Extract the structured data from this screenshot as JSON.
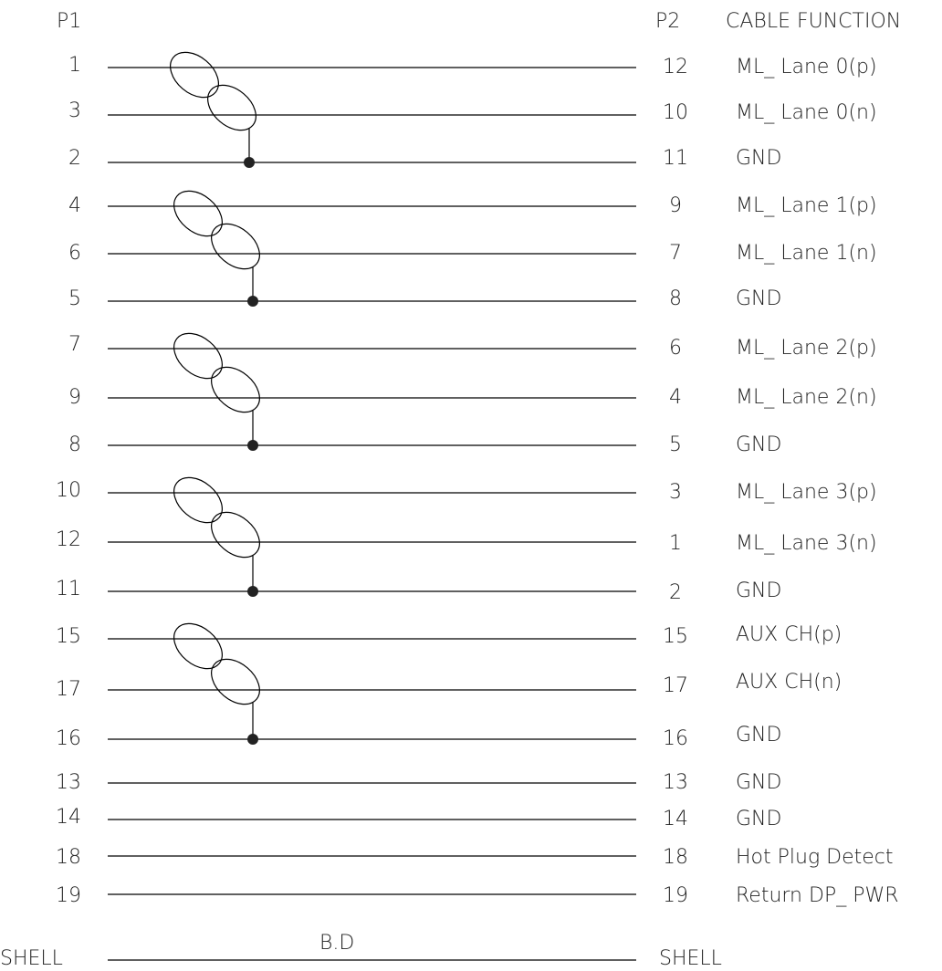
{
  "headers": {
    "p1": "P1",
    "p2": "P2",
    "function": "CABLE FUNCTION"
  },
  "rows": [
    {
      "p1": "1",
      "p2": "12",
      "fn": "ML_ Lane 0(p)"
    },
    {
      "p1": "3",
      "p2": "10",
      "fn": "ML_ Lane 0(n)"
    },
    {
      "p1": "2",
      "p2": "11",
      "fn": "GND"
    },
    {
      "p1": "4",
      "p2": "9",
      "fn": "ML_ Lane 1(p)"
    },
    {
      "p1": "6",
      "p2": "7",
      "fn": "ML_ Lane 1(n)"
    },
    {
      "p1": "5",
      "p2": "8",
      "fn": "GND"
    },
    {
      "p1": "7",
      "p2": "6",
      "fn": "ML_ Lane 2(p)"
    },
    {
      "p1": "9",
      "p2": "4",
      "fn": "ML_ Lane 2(n)"
    },
    {
      "p1": "8",
      "p2": "5",
      "fn": "GND"
    },
    {
      "p1": "10",
      "p2": "3",
      "fn": "ML_ Lane 3(p)"
    },
    {
      "p1": "12",
      "p2": "1",
      "fn": "ML_ Lane 3(n)"
    },
    {
      "p1": "11",
      "p2": "2",
      "fn": "GND"
    },
    {
      "p1": "15",
      "p2": "15",
      "fn": "AUX CH(p)"
    },
    {
      "p1": "17",
      "p2": "17",
      "fn": "AUX CH(n)"
    },
    {
      "p1": "16",
      "p2": "16",
      "fn": "GND"
    },
    {
      "p1": "13",
      "p2": "13",
      "fn": "GND"
    },
    {
      "p1": "14",
      "p2": "14",
      "fn": "GND"
    },
    {
      "p1": "18",
      "p2": "18",
      "fn": "Hot Plug Detect"
    },
    {
      "p1": "19",
      "p2": "19",
      "fn": "Return DP_ PWR"
    }
  ],
  "shell": {
    "left": "SHELL",
    "right": "SHELL",
    "label": "B.D"
  }
}
